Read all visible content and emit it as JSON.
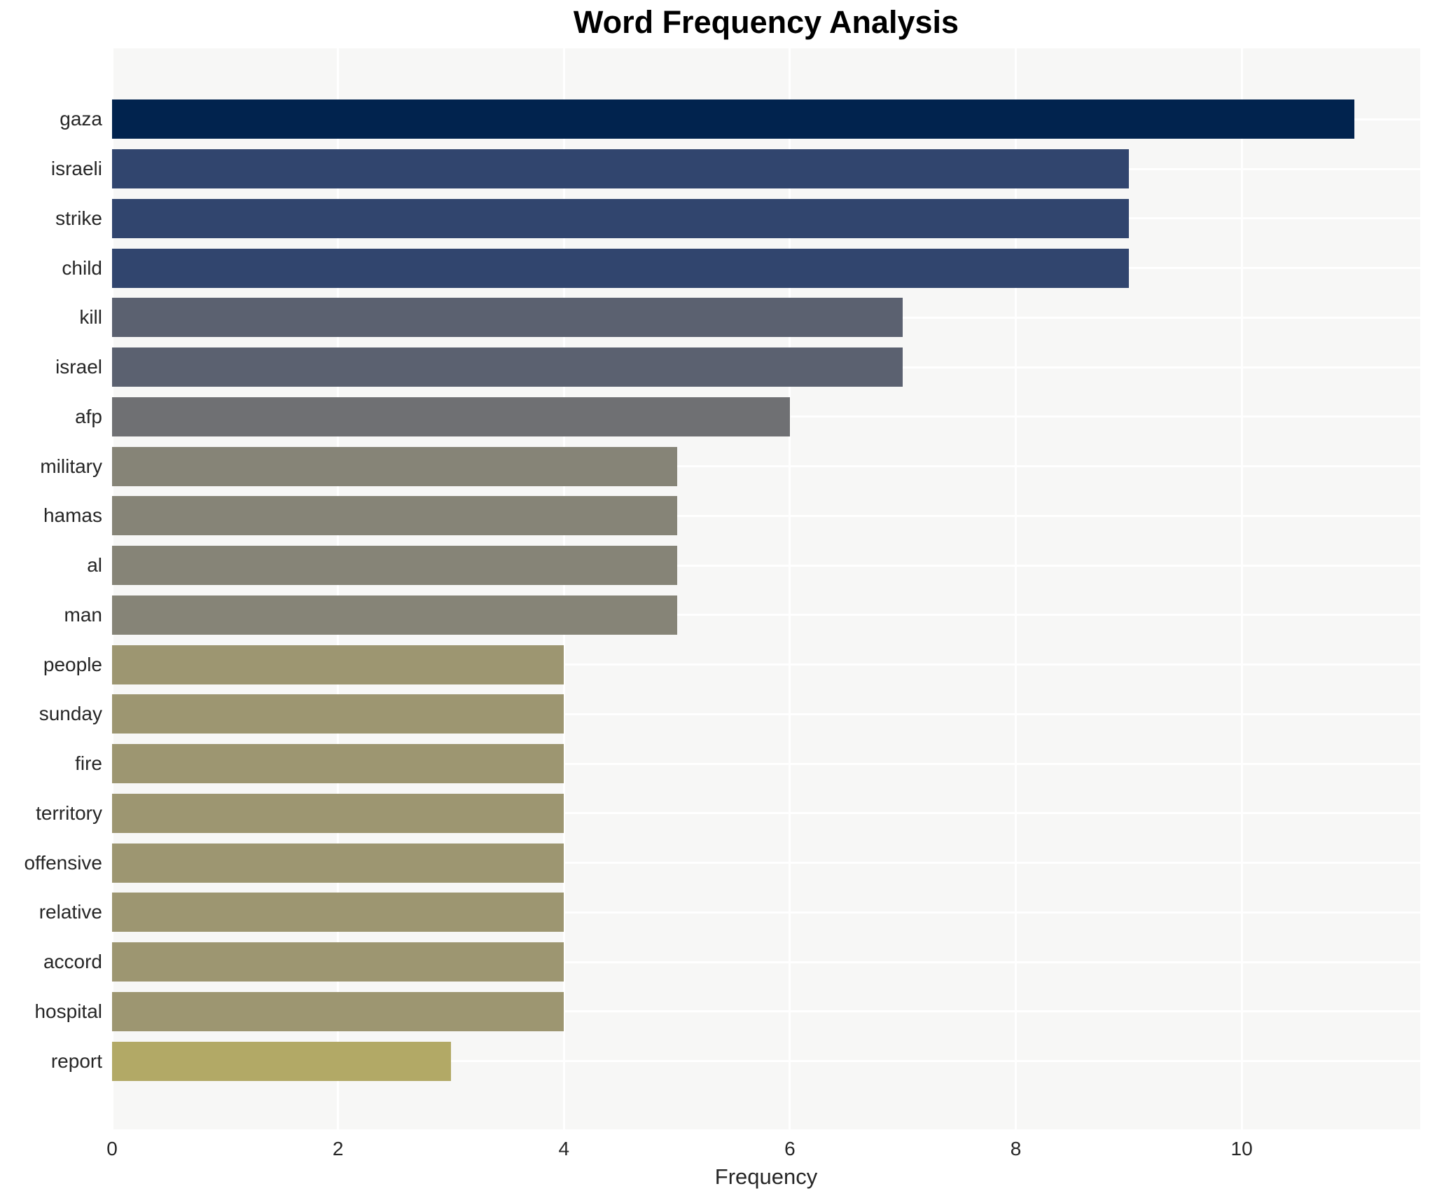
{
  "chart_data": {
    "type": "bar",
    "orientation": "horizontal",
    "title": "Word Frequency Analysis",
    "xlabel": "Frequency",
    "ylabel": "",
    "categories": [
      "gaza",
      "israeli",
      "strike",
      "child",
      "kill",
      "israel",
      "afp",
      "military",
      "hamas",
      "al",
      "man",
      "people",
      "sunday",
      "fire",
      "territory",
      "offensive",
      "relative",
      "accord",
      "hospital",
      "report"
    ],
    "values": [
      11,
      9,
      9,
      9,
      7,
      7,
      6,
      5,
      5,
      5,
      5,
      4,
      4,
      4,
      4,
      4,
      4,
      4,
      4,
      3
    ],
    "bar_colors": [
      "#01234e",
      "#31456e",
      "#31456e",
      "#31456e",
      "#5b6170",
      "#5b6170",
      "#6f7073",
      "#868477",
      "#868477",
      "#868477",
      "#868477",
      "#9d9671",
      "#9d9671",
      "#9d9671",
      "#9d9671",
      "#9d9671",
      "#9d9671",
      "#9d9671",
      "#9d9671",
      "#b2a966"
    ],
    "xticks": [
      0,
      2,
      4,
      6,
      8,
      10
    ],
    "xlim": [
      0,
      11.58
    ],
    "grid": true,
    "legend": false,
    "plot_background": "#f7f7f6",
    "grid_color": "#ffffff",
    "figure_background": "#ffffff"
  }
}
